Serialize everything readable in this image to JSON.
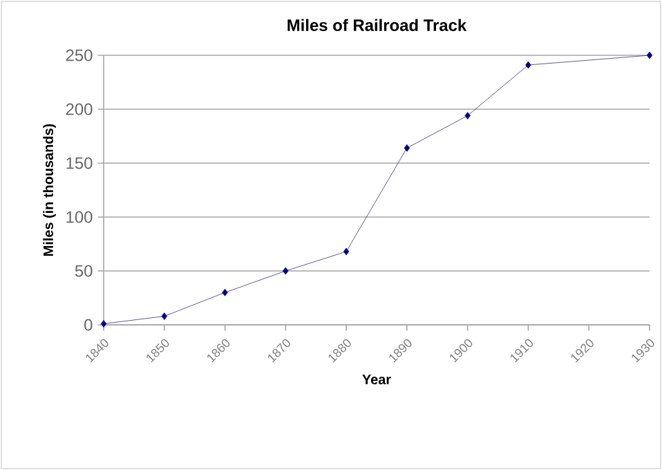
{
  "chart_data": {
    "type": "line",
    "title": "Miles of Railroad Track",
    "xlabel": "Year",
    "ylabel": "Miles (in thousands)",
    "x": [
      1840,
      1850,
      1860,
      1870,
      1880,
      1890,
      1900,
      1910,
      1930
    ],
    "series": [
      {
        "color": "#000080",
        "values": [
          1,
          8,
          30,
          50,
          68,
          164,
          194,
          241,
          250
        ]
      }
    ],
    "xlim": [
      1840,
      1930
    ],
    "xticks": [
      1840,
      1850,
      1860,
      1870,
      1880,
      1890,
      1900,
      1910,
      1920,
      1930
    ],
    "ylim": [
      0,
      250
    ],
    "yticks": [
      0,
      50,
      100,
      150,
      200,
      250
    ],
    "grid": "y",
    "marker": "diamond",
    "line_style": "solid"
  }
}
